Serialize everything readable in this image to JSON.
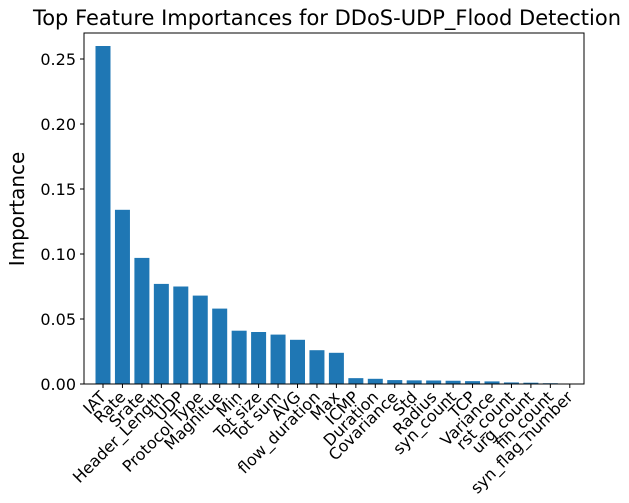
{
  "chart_data": {
    "type": "bar",
    "title": "Top Feature Importances for DDoS-UDP_Flood Detection",
    "xlabel": "",
    "ylabel": "Importance",
    "ylim": [
      0,
      0.27
    ],
    "yticks": [
      {
        "value": 0.0,
        "label": "0.00"
      },
      {
        "value": 0.05,
        "label": "0.05"
      },
      {
        "value": 0.1,
        "label": "0.10"
      },
      {
        "value": 0.15,
        "label": "0.15"
      },
      {
        "value": 0.2,
        "label": "0.20"
      },
      {
        "value": 0.25,
        "label": "0.25"
      }
    ],
    "bar_color": "#1f77b4",
    "grid": false,
    "categories": [
      "IAT",
      "Rate",
      "Srate",
      "Header_Length",
      "UDP",
      "Protocol Type",
      "Magnitue",
      "Min",
      "Tot size",
      "Tot sum",
      "AVG",
      "flow_duration",
      "Max",
      "ICMP",
      "Duration",
      "Covariance",
      "Std",
      "Radius",
      "syn_count",
      "TCP",
      "Variance",
      "rst_count",
      "urg_count",
      "fin_count",
      "syn_flag_number"
    ],
    "values": [
      0.26,
      0.134,
      0.097,
      0.077,
      0.075,
      0.068,
      0.058,
      0.041,
      0.04,
      0.038,
      0.034,
      0.026,
      0.024,
      0.0045,
      0.004,
      0.003,
      0.0028,
      0.0027,
      0.0025,
      0.0022,
      0.002,
      0.0012,
      0.001,
      0.0006,
      0.0003
    ]
  }
}
